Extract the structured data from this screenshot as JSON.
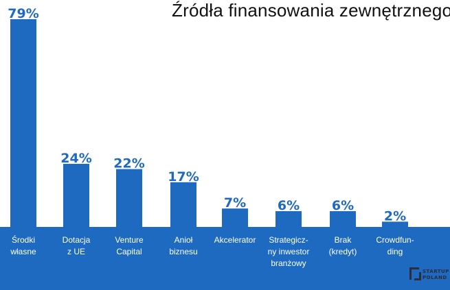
{
  "chart_data": {
    "type": "bar",
    "title": "Źródła finansowania zewnętrznego",
    "categories": [
      [
        "Środki",
        "własne"
      ],
      [
        "Dotacja",
        "z UE"
      ],
      [
        "Venture",
        "Capital"
      ],
      [
        "Anioł",
        "biznesu"
      ],
      [
        "Akcelerator"
      ],
      [
        "Strategicz-",
        "ny inwestor",
        "branżowy"
      ],
      [
        "Brak",
        "(kredyt)"
      ],
      [
        "Crowdfun-",
        "ding"
      ]
    ],
    "values": [
      79,
      24,
      22,
      17,
      7,
      6,
      6,
      2
    ],
    "value_labels": [
      "79%",
      "24%",
      "22%",
      "17%",
      "7%",
      "6%",
      "6%",
      "2%"
    ],
    "unit": "%",
    "ylim": [
      0,
      79
    ],
    "xlabel": "",
    "ylabel": "",
    "grid": false,
    "colors": {
      "bar": "#1d6ac0",
      "band": "#1d6ac0",
      "label_text": "#ffffff",
      "value_text": "#1d6ac0",
      "title_text": "#111111"
    }
  },
  "logo": {
    "text_line1": "STARTUP",
    "text_line2": "POLAND"
  }
}
